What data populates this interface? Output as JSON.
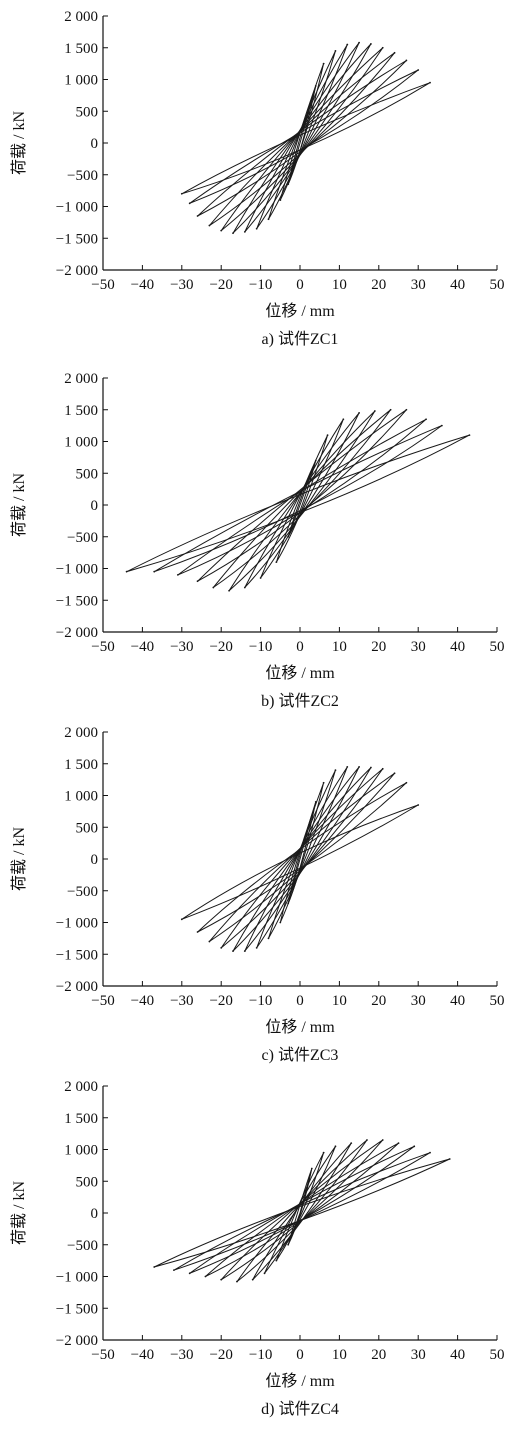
{
  "chart_data": [
    {
      "type": "line",
      "caption": "a)  试件ZC1",
      "xlabel": "位移 / mm",
      "ylabel": "荷载 / kN",
      "xlim": [
        -50,
        50
      ],
      "ylim": [
        -2000,
        2000
      ],
      "xticks": [
        -50,
        -40,
        -30,
        -20,
        -10,
        0,
        10,
        20,
        30,
        40,
        50
      ],
      "xtick_labels": [
        "−50",
        "−40",
        "−30",
        "−20",
        "−10",
        "0",
        "10",
        "20",
        "30",
        "40",
        "50"
      ],
      "yticks": [
        2000,
        1500,
        1000,
        500,
        0,
        -500,
        -1000,
        -1500,
        -2000
      ],
      "ytick_labels": [
        "2 000",
        "1 500",
        "1 000",
        "500",
        "0",
        "−500",
        "−1 000",
        "−1 500",
        "−2 000"
      ],
      "series": [
        {
          "loops": [
            {
              "pos": [
                4,
                900
              ],
              "neg": [
                -3,
                -650
              ]
            },
            {
              "pos": [
                6,
                1250
              ],
              "neg": [
                -5,
                -900
              ]
            },
            {
              "pos": [
                9,
                1450
              ],
              "neg": [
                -8,
                -1200
              ]
            },
            {
              "pos": [
                12,
                1550
              ],
              "neg": [
                -11,
                -1350
              ]
            },
            {
              "pos": [
                15,
                1580
              ],
              "neg": [
                -14,
                -1400
              ]
            },
            {
              "pos": [
                18,
                1560
              ],
              "neg": [
                -17,
                -1420
              ]
            },
            {
              "pos": [
                21,
                1500
              ],
              "neg": [
                -20,
                -1380
              ]
            },
            {
              "pos": [
                24,
                1420
              ],
              "neg": [
                -23,
                -1300
              ]
            },
            {
              "pos": [
                27,
                1300
              ],
              "neg": [
                -26,
                -1150
              ]
            },
            {
              "pos": [
                30,
                1150
              ],
              "neg": [
                -28,
                -950
              ]
            },
            {
              "pos": [
                33,
                950
              ],
              "neg": [
                -30,
                -800
              ]
            }
          ]
        }
      ]
    },
    {
      "type": "line",
      "caption": "b)  试件ZC2",
      "xlabel": "位移 / mm",
      "ylabel": "荷载 / kN",
      "xlim": [
        -50,
        50
      ],
      "ylim": [
        -2000,
        2000
      ],
      "xticks": [
        -50,
        -40,
        -30,
        -20,
        -10,
        0,
        10,
        20,
        30,
        40,
        50
      ],
      "xtick_labels": [
        "−50",
        "−40",
        "−30",
        "−20",
        "−10",
        "0",
        "10",
        "20",
        "30",
        "40",
        "50"
      ],
      "yticks": [
        2000,
        1500,
        1000,
        500,
        0,
        -500,
        -1000,
        -1500,
        -2000
      ],
      "ytick_labels": [
        "2 000",
        "1 500",
        "1 000",
        "500",
        "0",
        "−500",
        "−1 000",
        "−1 500",
        "−2 000"
      ],
      "series": [
        {
          "loops": [
            {
              "pos": [
                4,
                700
              ],
              "neg": [
                -3,
                -500
              ]
            },
            {
              "pos": [
                7,
                1100
              ],
              "neg": [
                -6,
                -900
              ]
            },
            {
              "pos": [
                11,
                1350
              ],
              "neg": [
                -10,
                -1150
              ]
            },
            {
              "pos": [
                15,
                1450
              ],
              "neg": [
                -14,
                -1300
              ]
            },
            {
              "pos": [
                19,
                1480
              ],
              "neg": [
                -18,
                -1350
              ]
            },
            {
              "pos": [
                23,
                1500
              ],
              "neg": [
                -22,
                -1300
              ]
            },
            {
              "pos": [
                27,
                1500
              ],
              "neg": [
                -26,
                -1200
              ]
            },
            {
              "pos": [
                32,
                1350
              ],
              "neg": [
                -31,
                -1100
              ]
            },
            {
              "pos": [
                36,
                1250
              ],
              "neg": [
                -37,
                -1050
              ]
            },
            {
              "pos": [
                43,
                1100
              ],
              "neg": [
                -44,
                -1050
              ]
            }
          ]
        }
      ]
    },
    {
      "type": "line",
      "caption": "c)  试件ZC3",
      "xlabel": "位移 / mm",
      "ylabel": "荷载 / kN",
      "xlim": [
        -50,
        50
      ],
      "ylim": [
        -2000,
        2000
      ],
      "xticks": [
        -50,
        -40,
        -30,
        -20,
        -10,
        0,
        10,
        20,
        30,
        40,
        50
      ],
      "xtick_labels": [
        "−50",
        "−40",
        "−30",
        "−20",
        "−10",
        "0",
        "10",
        "20",
        "30",
        "40",
        "50"
      ],
      "yticks": [
        2000,
        1500,
        1000,
        500,
        0,
        -500,
        -1000,
        -1500,
        -2000
      ],
      "ytick_labels": [
        "2 000",
        "1 500",
        "1 000",
        "500",
        "0",
        "−500",
        "−1 000",
        "−1 500",
        "−2 000"
      ],
      "series": [
        {
          "loops": [
            {
              "pos": [
                4,
                900
              ],
              "neg": [
                -3,
                -700
              ]
            },
            {
              "pos": [
                6,
                1200
              ],
              "neg": [
                -5,
                -1000
              ]
            },
            {
              "pos": [
                9,
                1400
              ],
              "neg": [
                -8,
                -1250
              ]
            },
            {
              "pos": [
                12,
                1450
              ],
              "neg": [
                -11,
                -1400
              ]
            },
            {
              "pos": [
                15,
                1450
              ],
              "neg": [
                -14,
                -1450
              ]
            },
            {
              "pos": [
                18,
                1440
              ],
              "neg": [
                -17,
                -1450
              ]
            },
            {
              "pos": [
                21,
                1420
              ],
              "neg": [
                -20,
                -1400
              ]
            },
            {
              "pos": [
                24,
                1350
              ],
              "neg": [
                -23,
                -1300
              ]
            },
            {
              "pos": [
                27,
                1200
              ],
              "neg": [
                -26,
                -1150
              ]
            },
            {
              "pos": [
                30,
                850
              ],
              "neg": [
                -30,
                -950
              ]
            }
          ]
        }
      ]
    },
    {
      "type": "line",
      "caption": "d)  试件ZC4",
      "xlabel": "位移 / mm",
      "ylabel": "荷载 / kN",
      "xlim": [
        -50,
        50
      ],
      "ylim": [
        -2000,
        2000
      ],
      "xticks": [
        -50,
        -40,
        -30,
        -20,
        -10,
        0,
        10,
        20,
        30,
        40,
        50
      ],
      "xtick_labels": [
        "−50",
        "−40",
        "−30",
        "−20",
        "−10",
        "0",
        "10",
        "20",
        "30",
        "40",
        "50"
      ],
      "yticks": [
        2000,
        1500,
        1000,
        500,
        0,
        -500,
        -1000,
        -1500,
        -2000
      ],
      "ytick_labels": [
        "2 000",
        "1 500",
        "1 000",
        "500",
        "0",
        "−500",
        "−1 000",
        "−1 500",
        "−2 000"
      ],
      "series": [
        {
          "loops": [
            {
              "pos": [
                3,
                700
              ],
              "neg": [
                -3,
                -500
              ]
            },
            {
              "pos": [
                6,
                950
              ],
              "neg": [
                -6,
                -750
              ]
            },
            {
              "pos": [
                9,
                1050
              ],
              "neg": [
                -9,
                -950
              ]
            },
            {
              "pos": [
                13,
                1100
              ],
              "neg": [
                -12,
                -1050
              ]
            },
            {
              "pos": [
                17,
                1150
              ],
              "neg": [
                -16,
                -1080
              ]
            },
            {
              "pos": [
                21,
                1150
              ],
              "neg": [
                -20,
                -1050
              ]
            },
            {
              "pos": [
                25,
                1100
              ],
              "neg": [
                -24,
                -1000
              ]
            },
            {
              "pos": [
                29,
                1050
              ],
              "neg": [
                -28,
                -950
              ]
            },
            {
              "pos": [
                33,
                950
              ],
              "neg": [
                -32,
                -900
              ]
            },
            {
              "pos": [
                38,
                850
              ],
              "neg": [
                -37,
                -850
              ]
            }
          ]
        }
      ]
    }
  ]
}
